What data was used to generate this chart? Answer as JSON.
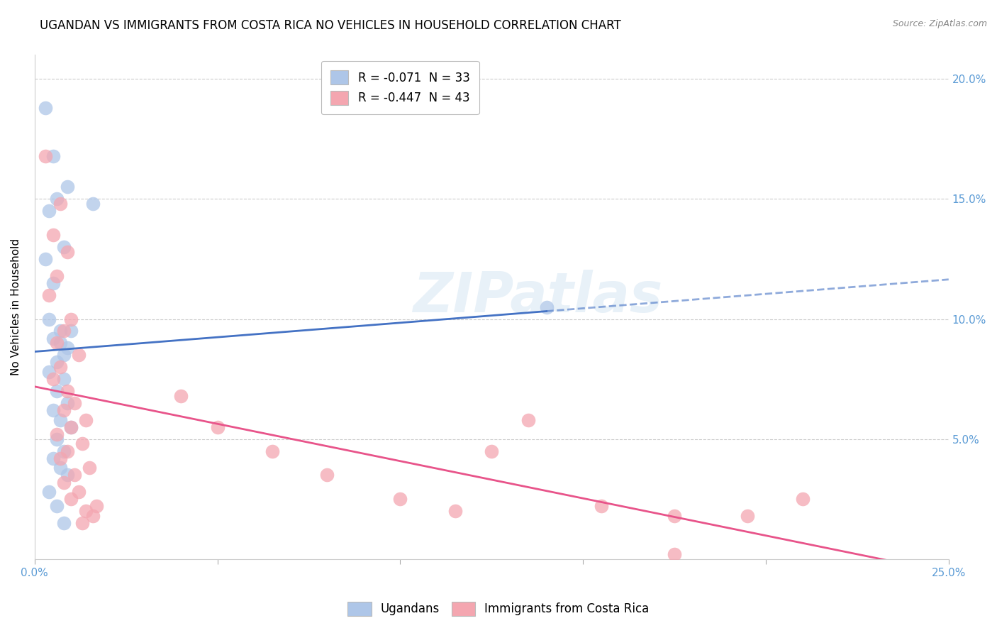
{
  "title": "UGANDAN VS IMMIGRANTS FROM COSTA RICA NO VEHICLES IN HOUSEHOLD CORRELATION CHART",
  "source": "Source: ZipAtlas.com",
  "ylabel": "No Vehicles in Household",
  "xlim": [
    0.0,
    0.25
  ],
  "ylim": [
    0.0,
    0.21
  ],
  "legend_entries": [
    {
      "label": "R = -0.071  N = 33",
      "color": "#aec6e8"
    },
    {
      "label": "R = -0.447  N = 43",
      "color": "#f4a6b0"
    }
  ],
  "ugandan_points": [
    [
      0.003,
      0.188
    ],
    [
      0.005,
      0.168
    ],
    [
      0.009,
      0.155
    ],
    [
      0.006,
      0.15
    ],
    [
      0.004,
      0.145
    ],
    [
      0.008,
      0.13
    ],
    [
      0.003,
      0.125
    ],
    [
      0.005,
      0.115
    ],
    [
      0.016,
      0.148
    ],
    [
      0.004,
      0.1
    ],
    [
      0.007,
      0.095
    ],
    [
      0.005,
      0.092
    ],
    [
      0.009,
      0.088
    ],
    [
      0.008,
      0.085
    ],
    [
      0.006,
      0.082
    ],
    [
      0.01,
      0.095
    ],
    [
      0.007,
      0.09
    ],
    [
      0.004,
      0.078
    ],
    [
      0.008,
      0.075
    ],
    [
      0.006,
      0.07
    ],
    [
      0.009,
      0.065
    ],
    [
      0.005,
      0.062
    ],
    [
      0.007,
      0.058
    ],
    [
      0.01,
      0.055
    ],
    [
      0.006,
      0.05
    ],
    [
      0.008,
      0.045
    ],
    [
      0.005,
      0.042
    ],
    [
      0.007,
      0.038
    ],
    [
      0.009,
      0.035
    ],
    [
      0.004,
      0.028
    ],
    [
      0.006,
      0.022
    ],
    [
      0.008,
      0.015
    ],
    [
      0.14,
      0.105
    ]
  ],
  "costarica_points": [
    [
      0.003,
      0.168
    ],
    [
      0.007,
      0.148
    ],
    [
      0.005,
      0.135
    ],
    [
      0.009,
      0.128
    ],
    [
      0.006,
      0.118
    ],
    [
      0.004,
      0.11
    ],
    [
      0.01,
      0.1
    ],
    [
      0.008,
      0.095
    ],
    [
      0.006,
      0.09
    ],
    [
      0.012,
      0.085
    ],
    [
      0.007,
      0.08
    ],
    [
      0.005,
      0.075
    ],
    [
      0.009,
      0.07
    ],
    [
      0.011,
      0.065
    ],
    [
      0.008,
      0.062
    ],
    [
      0.014,
      0.058
    ],
    [
      0.01,
      0.055
    ],
    [
      0.006,
      0.052
    ],
    [
      0.013,
      0.048
    ],
    [
      0.009,
      0.045
    ],
    [
      0.007,
      0.042
    ],
    [
      0.015,
      0.038
    ],
    [
      0.011,
      0.035
    ],
    [
      0.008,
      0.032
    ],
    [
      0.012,
      0.028
    ],
    [
      0.01,
      0.025
    ],
    [
      0.017,
      0.022
    ],
    [
      0.014,
      0.02
    ],
    [
      0.016,
      0.018
    ],
    [
      0.013,
      0.015
    ],
    [
      0.04,
      0.068
    ],
    [
      0.05,
      0.055
    ],
    [
      0.065,
      0.045
    ],
    [
      0.08,
      0.035
    ],
    [
      0.1,
      0.025
    ],
    [
      0.115,
      0.02
    ],
    [
      0.125,
      0.045
    ],
    [
      0.135,
      0.058
    ],
    [
      0.155,
      0.022
    ],
    [
      0.175,
      0.018
    ],
    [
      0.195,
      0.018
    ],
    [
      0.21,
      0.025
    ],
    [
      0.175,
      0.002
    ]
  ],
  "ugandan_color": "#aec6e8",
  "costarica_color": "#f4a6b0",
  "ugandan_line_color": "#4472c4",
  "costarica_line_color": "#e8548a",
  "background_color": "#ffffff",
  "watermark": "ZIPatlas",
  "title_fontsize": 12,
  "axis_label_fontsize": 11,
  "tick_fontsize": 11,
  "legend_fontsize": 12,
  "ugandan_R": -0.071,
  "ugandan_N": 33,
  "costarica_R": -0.447,
  "costarica_N": 43,
  "line_solid_end_ugandan": 0.14,
  "line_solid_end_costarica": 0.25
}
